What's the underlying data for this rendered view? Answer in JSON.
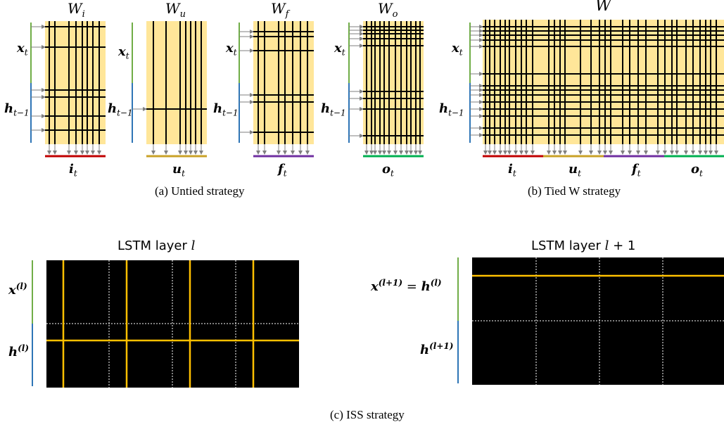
{
  "panel_a": {
    "caption": "(a)  Untied strategy",
    "matrices": [
      {
        "name_base": "W",
        "name_sub": "i",
        "gate_base": "i",
        "gate_sub": "t",
        "gate_color": "#c00000"
      },
      {
        "name_base": "W",
        "name_sub": "u",
        "gate_base": "u",
        "gate_sub": "t",
        "gate_color": "#c9a227"
      },
      {
        "name_base": "W",
        "name_sub": "f",
        "gate_base": "f",
        "gate_sub": "t",
        "gate_color": "#7030a0"
      },
      {
        "name_base": "W",
        "name_sub": "o",
        "gate_base": "o",
        "gate_sub": "t",
        "gate_color": "#00b050"
      }
    ],
    "input_x_base": "x",
    "input_x_sub": "t",
    "input_h_base": "h",
    "input_h_sub": "t−1"
  },
  "panel_b": {
    "caption": "(b)  Tied W strategy",
    "matrix_name": "W",
    "gates": [
      {
        "base": "i",
        "sub": "t",
        "color": "#c00000"
      },
      {
        "base": "u",
        "sub": "t",
        "color": "#c9a227"
      },
      {
        "base": "f",
        "sub": "t",
        "color": "#7030a0"
      },
      {
        "base": "o",
        "sub": "t",
        "color": "#00b050"
      }
    ],
    "input_x_base": "x",
    "input_x_sub": "t",
    "input_h_base": "h",
    "input_h_sub": "t−1"
  },
  "panel_c": {
    "caption": "(c)  ISS strategy",
    "layer1_title_prefix": "LSTM layer ",
    "layer1_title_var": "l",
    "layer2_title_prefix": "LSTM layer ",
    "layer2_title_var": "l",
    "layer2_title_suffix": " + 1",
    "l1_x_base": "x",
    "l1_x_sup": "(l)",
    "l1_h_base": "h",
    "l1_h_sup": "(l)",
    "l2_x_base": "x",
    "l2_x_sup": "(l+1)",
    "l2_eq": " = ",
    "l2_xh_base": "h",
    "l2_xh_sup": "(l)",
    "l2_h_base": "h",
    "l2_h_sup": "(l+1)"
  },
  "colors": {
    "matrix_fill": "#ffe699",
    "grid_line": "#000000",
    "arrow": "#7f7f7f",
    "x_bar": "#70ad47",
    "h_bar": "#2e75b6",
    "iss_bg": "#000000",
    "iss_line": "#ffc000",
    "iss_divider": "#ffffff"
  }
}
